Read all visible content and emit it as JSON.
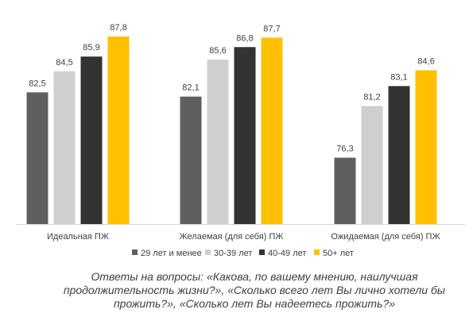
{
  "chart_data": {
    "type": "bar",
    "title": "",
    "xlabel": "",
    "ylabel": "",
    "ylim": [
      70,
      89
    ],
    "grid": false,
    "legend_position": "bottom",
    "value_decimal_separator": ",",
    "categories": [
      "Идеальная ПЖ",
      "Желаемая (для себя) ПЖ",
      "Ожидаемая (для себя) ПЖ"
    ],
    "series": [
      {
        "name": "29 лет и менее",
        "color": "#5f5f5f",
        "values": [
          82.5,
          82.1,
          76.3
        ]
      },
      {
        "name": "30-39 лет",
        "color": "#d0cece",
        "values": [
          84.5,
          85.6,
          81.2
        ]
      },
      {
        "name": "40-49 лет",
        "color": "#333333",
        "values": [
          85.9,
          86.8,
          83.1
        ]
      },
      {
        "name": "50+ лет",
        "color": "#ffc000",
        "values": [
          87.8,
          87.7,
          84.6
        ]
      }
    ]
  },
  "caption": "Ответы на вопросы: «Какова, по вашему мнению, наилучшая продолжительность жизни?», «Сколько всего лет Вы лично хотели бы прожить?», «Сколько лет Вы надеетесь прожить?»"
}
